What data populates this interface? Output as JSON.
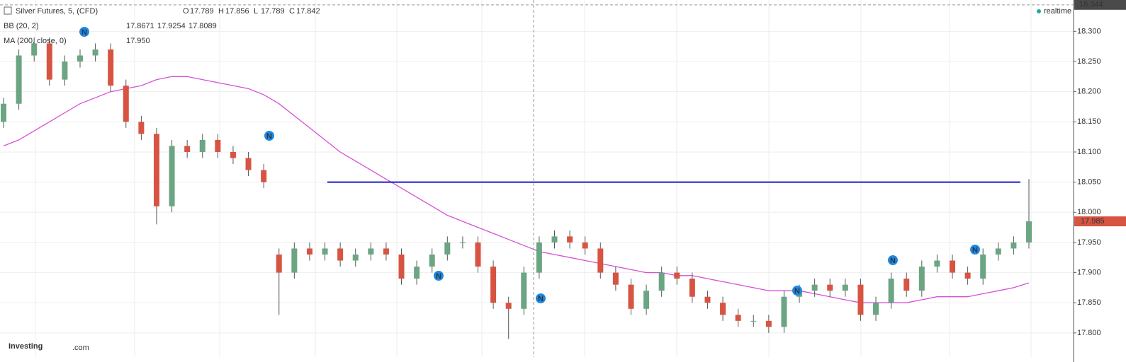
{
  "chart_data": {
    "type": "candlestick",
    "title": "Silver Futures, 5, (CFD)",
    "ohlc_labels": [
      "O",
      "H",
      "L",
      "C"
    ],
    "ohlc_values": [
      "17.789",
      "17.856",
      "17.789",
      "17.842"
    ],
    "indicators": [
      {
        "name": "BB (20, 2)",
        "values": [
          "17.8671",
          "17.9254",
          "17.8089"
        ]
      },
      {
        "name": "MA (200, close, 0)",
        "values": [
          "17.950"
        ]
      }
    ],
    "open": [
      18.15,
      18.18,
      18.26,
      18.28,
      18.22,
      18.25,
      18.26,
      18.27,
      18.21,
      18.15,
      18.13,
      18.01,
      18.11,
      18.1,
      18.12,
      18.1,
      18.09,
      18.07,
      17.93,
      17.9,
      17.94,
      17.93,
      17.94,
      17.92,
      17.93,
      17.94,
      17.93,
      17.89,
      17.91,
      17.93,
      17.95,
      17.95,
      17.91,
      17.85,
      17.84,
      17.9,
      17.95,
      17.96,
      17.95,
      17.94,
      17.9,
      17.88,
      17.84,
      17.87,
      17.9,
      17.89,
      17.86,
      17.85,
      17.83,
      17.82,
      17.82,
      17.81,
      17.86,
      17.87,
      17.88,
      17.87,
      17.88,
      17.83,
      17.85,
      17.89,
      17.87,
      17.91,
      17.92,
      17.9,
      17.89,
      17.93,
      17.94,
      17.95
    ],
    "high": [
      18.19,
      18.27,
      18.29,
      18.29,
      18.26,
      18.27,
      18.28,
      18.28,
      18.22,
      18.16,
      18.14,
      18.12,
      18.12,
      18.13,
      18.13,
      18.11,
      18.1,
      18.08,
      17.94,
      17.95,
      17.95,
      17.95,
      17.95,
      17.94,
      17.95,
      17.95,
      17.94,
      17.92,
      17.94,
      17.96,
      17.96,
      17.96,
      17.92,
      17.86,
      17.91,
      17.96,
      17.97,
      17.97,
      17.96,
      17.95,
      17.91,
      17.89,
      17.88,
      17.91,
      17.91,
      17.9,
      17.87,
      17.86,
      17.84,
      17.83,
      17.83,
      17.87,
      17.88,
      17.89,
      17.89,
      17.89,
      17.89,
      17.86,
      17.9,
      17.9,
      17.92,
      17.93,
      17.93,
      17.91,
      17.94,
      17.95,
      17.96,
      18.055
    ],
    "low": [
      18.14,
      18.17,
      18.25,
      18.21,
      18.21,
      18.24,
      18.25,
      18.2,
      18.14,
      18.12,
      17.98,
      18.0,
      18.09,
      18.09,
      18.09,
      18.08,
      18.06,
      18.04,
      17.83,
      17.89,
      17.92,
      17.92,
      17.91,
      17.91,
      17.92,
      17.92,
      17.88,
      17.88,
      17.9,
      17.92,
      17.94,
      17.9,
      17.84,
      17.79,
      17.83,
      17.89,
      17.94,
      17.94,
      17.93,
      17.89,
      17.87,
      17.83,
      17.83,
      17.86,
      17.88,
      17.85,
      17.84,
      17.82,
      17.81,
      17.81,
      17.8,
      17.8,
      17.85,
      17.86,
      17.86,
      17.86,
      17.82,
      17.82,
      17.84,
      17.86,
      17.86,
      17.9,
      17.89,
      17.88,
      17.88,
      17.92,
      17.93,
      17.94
    ],
    "close": [
      18.18,
      18.26,
      18.28,
      18.22,
      18.25,
      18.26,
      18.27,
      18.21,
      18.15,
      18.13,
      18.01,
      18.11,
      18.1,
      18.12,
      18.1,
      18.09,
      18.07,
      18.05,
      17.9,
      17.94,
      17.93,
      17.94,
      17.92,
      17.93,
      17.94,
      17.93,
      17.89,
      17.91,
      17.93,
      17.95,
      17.95,
      17.91,
      17.85,
      17.84,
      17.9,
      17.95,
      17.96,
      17.95,
      17.94,
      17.9,
      17.88,
      17.84,
      17.87,
      17.9,
      17.89,
      17.86,
      17.85,
      17.83,
      17.82,
      17.82,
      17.81,
      17.86,
      17.87,
      17.88,
      17.87,
      17.88,
      17.83,
      17.85,
      17.89,
      17.87,
      17.91,
      17.92,
      17.9,
      17.89,
      17.93,
      17.94,
      17.95,
      17.985
    ],
    "ma_values": [
      18.11,
      18.12,
      18.135,
      18.15,
      18.165,
      18.18,
      18.19,
      18.2,
      18.205,
      18.21,
      18.22,
      18.225,
      18.225,
      18.22,
      18.215,
      18.21,
      18.205,
      18.195,
      18.18,
      18.16,
      18.14,
      18.12,
      18.1,
      18.085,
      18.07,
      18.055,
      18.04,
      18.025,
      18.01,
      17.995,
      17.985,
      17.975,
      17.965,
      17.955,
      17.945,
      17.935,
      17.93,
      17.925,
      17.92,
      17.915,
      17.91,
      17.905,
      17.9,
      17.9,
      17.895,
      17.895,
      17.89,
      17.885,
      17.88,
      17.875,
      17.87,
      17.87,
      17.87,
      17.865,
      17.86,
      17.855,
      17.85,
      17.85,
      17.85,
      17.85,
      17.855,
      17.86,
      17.86,
      17.86,
      17.865,
      17.87,
      17.875,
      17.883
    ],
    "ma_color": "#d64fd6",
    "up_color": "#6ba583",
    "down_color": "#d75442",
    "hline_value": 18.05,
    "hline_color": "#1a1acc",
    "last_price": 17.985,
    "crosshair_price": 18.344,
    "realtime_label": "realtime",
    "news_label": "N",
    "brand": "Investing",
    "brand_suffix": ".com",
    "ylim": [
      17.76,
      18.352
    ],
    "yticks": [
      {
        "value": 17.8,
        "label": "17.800"
      },
      {
        "value": 17.85,
        "label": "17.850"
      },
      {
        "value": 17.9,
        "label": "17.900"
      },
      {
        "value": 17.95,
        "label": "17.950"
      },
      {
        "value": 18.0,
        "label": "18.000"
      },
      {
        "value": 18.05,
        "label": "18.050"
      },
      {
        "value": 18.1,
        "label": "18.100"
      },
      {
        "value": 18.15,
        "label": "18.150"
      },
      {
        "value": 18.2,
        "label": "18.200"
      },
      {
        "value": 18.25,
        "label": "18.250"
      },
      {
        "value": 18.3,
        "label": "18.300"
      }
    ],
    "grid": true
  }
}
